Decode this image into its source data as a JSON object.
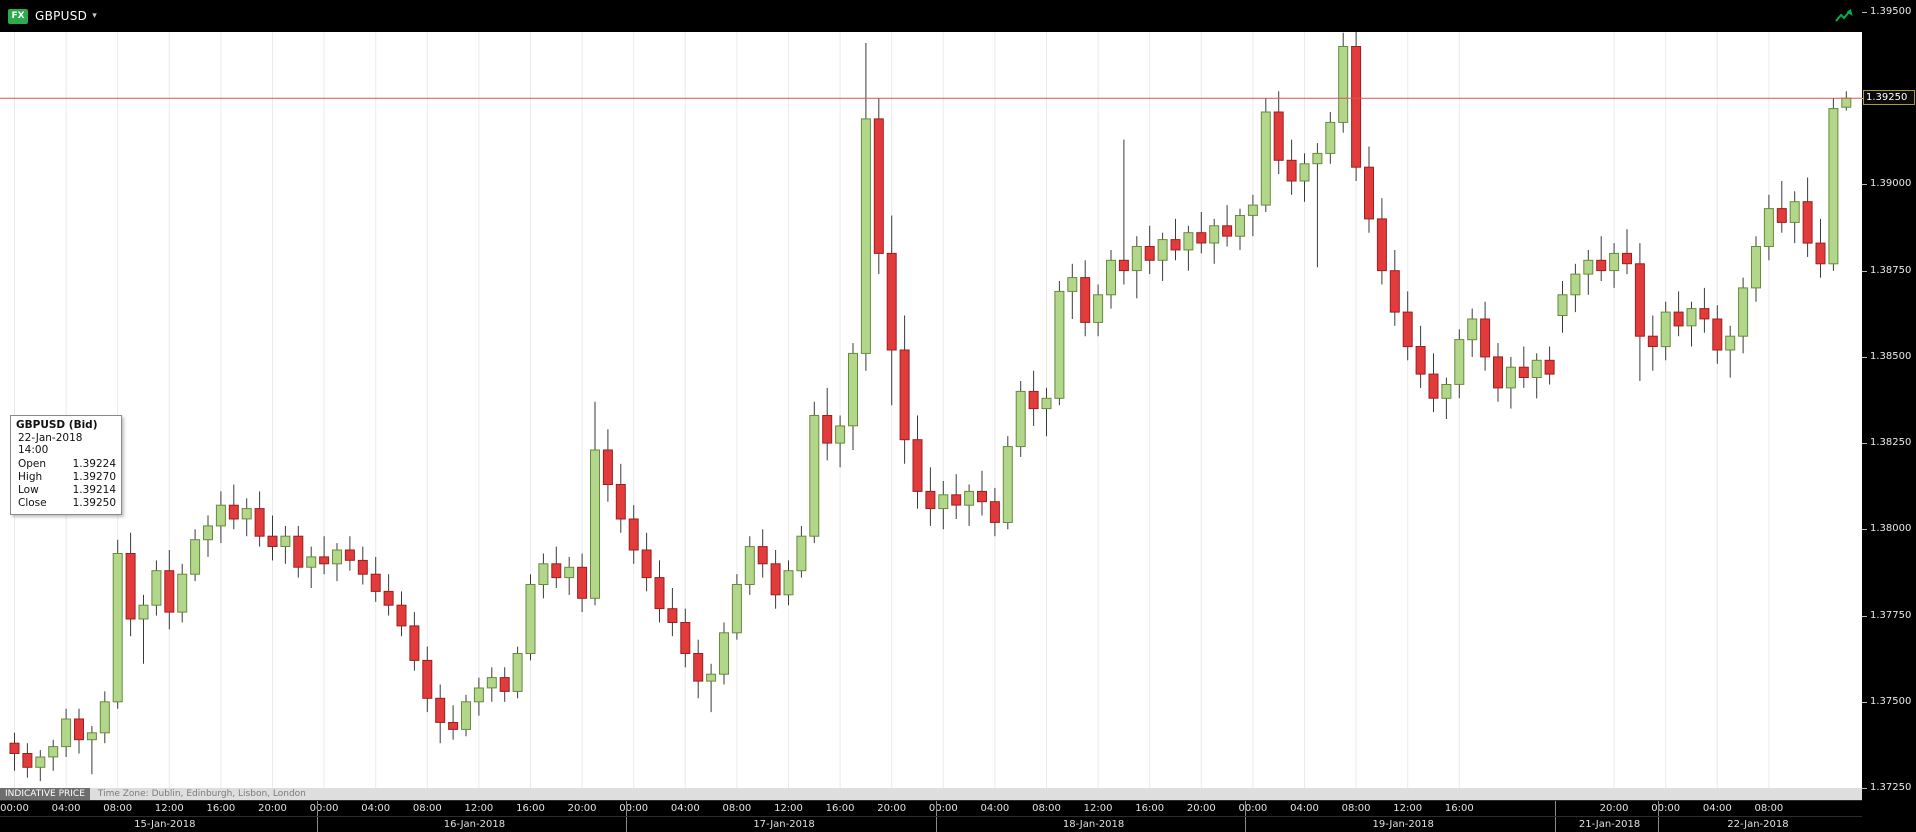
{
  "app": {
    "badge": "FX",
    "symbol": "GBPUSD",
    "icons": {
      "dropdown": "▾",
      "trend": "trend-up-zigzag-arrow"
    },
    "colors": {
      "badge_green": "#2eaa4e",
      "trend_green": "#00b050"
    }
  },
  "tooltip": {
    "title": "GBPUSD (Bid)",
    "datetime": "22-Jan-2018 14:00",
    "rows": [
      {
        "label": "Open",
        "value": "1.39224"
      },
      {
        "label": "High",
        "value": "1.39270"
      },
      {
        "label": "Low",
        "value": "1.39214"
      },
      {
        "label": "Close",
        "value": "1.39250"
      }
    ]
  },
  "footer": {
    "indicative": "INDICATIVE PRICE",
    "timezone": "Time Zone: Dublin, Edinburgh, Lisbon, London"
  },
  "chart_data": {
    "type": "candlestick",
    "series_name": "GBPUSD (Bid)",
    "interval": "1 hour",
    "price_axis": {
      "min": 1.3725,
      "max": 1.395,
      "step": 0.0025,
      "labels": [
        "1.39500",
        "1.39250",
        "1.39000",
        "1.38750",
        "1.38500",
        "1.38250",
        "1.38000",
        "1.37750",
        "1.37500",
        "1.37250"
      ]
    },
    "current_price": {
      "label": "1.39250",
      "value": 1.3925
    },
    "colors": {
      "up_fill": "#b2d78a",
      "up_stroke": "#678a3c",
      "down_fill": "#e13b3b",
      "down_stroke": "#9e1f1f",
      "wick": "#3a3a3a",
      "grid": "#ebebeb",
      "price_line": "#d95555"
    },
    "time_ticks": [
      [
        0,
        "00:00"
      ],
      [
        4,
        "04:00"
      ],
      [
        8,
        "08:00"
      ],
      [
        12,
        "12:00"
      ],
      [
        16,
        "16:00"
      ],
      [
        20,
        "20:00"
      ],
      [
        24,
        "00:00"
      ],
      [
        28,
        "04:00"
      ],
      [
        32,
        "08:00"
      ],
      [
        36,
        "12:00"
      ],
      [
        40,
        "16:00"
      ],
      [
        44,
        "20:00"
      ],
      [
        48,
        "00:00"
      ],
      [
        52,
        "04:00"
      ],
      [
        56,
        "08:00"
      ],
      [
        60,
        "12:00"
      ],
      [
        64,
        "16:00"
      ],
      [
        68,
        "20:00"
      ],
      [
        72,
        "00:00"
      ],
      [
        76,
        "04:00"
      ],
      [
        80,
        "08:00"
      ],
      [
        84,
        "12:00"
      ],
      [
        88,
        "16:00"
      ],
      [
        92,
        "20:00"
      ],
      [
        96,
        "00:00"
      ],
      [
        100,
        "04:00"
      ],
      [
        104,
        "08:00"
      ],
      [
        108,
        "12:00"
      ],
      [
        112,
        "16:00"
      ],
      [
        124,
        "20:00"
      ],
      [
        128,
        "00:00"
      ],
      [
        132,
        "04:00"
      ],
      [
        136,
        "08:00"
      ]
    ],
    "dates": [
      {
        "label": "15-Jan-2018",
        "start": 0,
        "end": 24
      },
      {
        "label": "16-Jan-2018",
        "start": 24,
        "end": 48
      },
      {
        "label": "17-Jan-2018",
        "start": 48,
        "end": 72
      },
      {
        "label": "18-Jan-2018",
        "start": 72,
        "end": 96
      },
      {
        "label": "19-Jan-2018",
        "start": 96,
        "end": 120
      },
      {
        "label": "21-Jan-2018",
        "start": 120,
        "end": 128
      },
      {
        "label": "22-Jan-2018",
        "start": 128,
        "end": 143
      }
    ],
    "day_boundaries": [
      24,
      48,
      72,
      96,
      120,
      128
    ],
    "candles": [
      [
        1.3738,
        1.3741,
        1.373,
        1.3735
      ],
      [
        1.3735,
        1.3738,
        1.3728,
        1.3731
      ],
      [
        1.3731,
        1.3736,
        1.3727,
        1.3734
      ],
      [
        1.3734,
        1.3739,
        1.373,
        1.3737
      ],
      [
        1.3737,
        1.3748,
        1.3734,
        1.3745
      ],
      [
        1.3745,
        1.3748,
        1.3735,
        1.3739
      ],
      [
        1.3739,
        1.3743,
        1.3729,
        1.3741
      ],
      [
        1.3741,
        1.3753,
        1.3738,
        1.375
      ],
      [
        1.375,
        1.3797,
        1.3748,
        1.3793
      ],
      [
        1.3793,
        1.3799,
        1.3769,
        1.3774
      ],
      [
        1.3774,
        1.3781,
        1.3761,
        1.3778
      ],
      [
        1.3778,
        1.3791,
        1.3775,
        1.3788
      ],
      [
        1.3788,
        1.3794,
        1.3771,
        1.3776
      ],
      [
        1.3776,
        1.379,
        1.3773,
        1.3787
      ],
      [
        1.3787,
        1.38,
        1.3785,
        1.3797
      ],
      [
        1.3797,
        1.3804,
        1.3792,
        1.3801
      ],
      [
        1.3801,
        1.3811,
        1.3796,
        1.3807
      ],
      [
        1.3807,
        1.3813,
        1.38,
        1.3803
      ],
      [
        1.3803,
        1.3809,
        1.3798,
        1.3806
      ],
      [
        1.3806,
        1.3811,
        1.3795,
        1.3798
      ],
      [
        1.3798,
        1.3804,
        1.3791,
        1.3795
      ],
      [
        1.3795,
        1.3801,
        1.379,
        1.3798
      ],
      [
        1.3798,
        1.3801,
        1.3786,
        1.3789
      ],
      [
        1.3789,
        1.3795,
        1.3783,
        1.3792
      ],
      [
        1.3792,
        1.3798,
        1.3787,
        1.379
      ],
      [
        1.379,
        1.3796,
        1.3785,
        1.3794
      ],
      [
        1.3794,
        1.3798,
        1.3788,
        1.3791
      ],
      [
        1.3791,
        1.3795,
        1.3784,
        1.3787
      ],
      [
        1.3787,
        1.3792,
        1.3779,
        1.3782
      ],
      [
        1.3782,
        1.3787,
        1.3775,
        1.3778
      ],
      [
        1.3778,
        1.3782,
        1.3769,
        1.3772
      ],
      [
        1.3772,
        1.3776,
        1.3759,
        1.3762
      ],
      [
        1.3762,
        1.3766,
        1.3747,
        1.3751
      ],
      [
        1.3751,
        1.3755,
        1.3738,
        1.3744
      ],
      [
        1.3744,
        1.3749,
        1.3739,
        1.3742
      ],
      [
        1.3742,
        1.3752,
        1.374,
        1.375
      ],
      [
        1.375,
        1.3757,
        1.3746,
        1.3754
      ],
      [
        1.3754,
        1.376,
        1.375,
        1.3757
      ],
      [
        1.3757,
        1.376,
        1.375,
        1.3753
      ],
      [
        1.3753,
        1.3766,
        1.3751,
        1.3764
      ],
      [
        1.3764,
        1.3787,
        1.3762,
        1.3784
      ],
      [
        1.3784,
        1.3793,
        1.378,
        1.379
      ],
      [
        1.379,
        1.3795,
        1.3783,
        1.3786
      ],
      [
        1.3786,
        1.3792,
        1.3781,
        1.3789
      ],
      [
        1.3789,
        1.3793,
        1.3776,
        1.378
      ],
      [
        1.378,
        1.3837,
        1.3778,
        1.3823
      ],
      [
        1.3823,
        1.3829,
        1.3808,
        1.3813
      ],
      [
        1.3813,
        1.3819,
        1.3799,
        1.3803
      ],
      [
        1.3803,
        1.3807,
        1.379,
        1.3794
      ],
      [
        1.3794,
        1.3799,
        1.3782,
        1.3786
      ],
      [
        1.3786,
        1.3791,
        1.3773,
        1.3777
      ],
      [
        1.3777,
        1.3783,
        1.3769,
        1.3773
      ],
      [
        1.3773,
        1.3777,
        1.376,
        1.3764
      ],
      [
        1.3764,
        1.3768,
        1.3751,
        1.3756
      ],
      [
        1.3756,
        1.3761,
        1.3747,
        1.3758
      ],
      [
        1.3758,
        1.3773,
        1.3755,
        1.377
      ],
      [
        1.377,
        1.3787,
        1.3768,
        1.3784
      ],
      [
        1.3784,
        1.3798,
        1.3781,
        1.3795
      ],
      [
        1.3795,
        1.38,
        1.3786,
        1.379
      ],
      [
        1.379,
        1.3794,
        1.3777,
        1.3781
      ],
      [
        1.3781,
        1.3791,
        1.3778,
        1.3788
      ],
      [
        1.3788,
        1.3801,
        1.3786,
        1.3798
      ],
      [
        1.3798,
        1.3837,
        1.3796,
        1.3833
      ],
      [
        1.3833,
        1.3841,
        1.382,
        1.3825
      ],
      [
        1.3825,
        1.3833,
        1.3818,
        1.383
      ],
      [
        1.383,
        1.3854,
        1.3823,
        1.3851
      ],
      [
        1.3851,
        1.3941,
        1.3846,
        1.3919
      ],
      [
        1.3919,
        1.3925,
        1.3874,
        1.388
      ],
      [
        1.388,
        1.3891,
        1.3836,
        1.3852
      ],
      [
        1.3852,
        1.3862,
        1.3819,
        1.3826
      ],
      [
        1.3826,
        1.3833,
        1.3806,
        1.3811
      ],
      [
        1.3811,
        1.3818,
        1.3801,
        1.3806
      ],
      [
        1.3806,
        1.3814,
        1.38,
        1.381
      ],
      [
        1.381,
        1.3816,
        1.3803,
        1.3807
      ],
      [
        1.3807,
        1.3813,
        1.3801,
        1.3811
      ],
      [
        1.3811,
        1.3817,
        1.3804,
        1.3808
      ],
      [
        1.3808,
        1.3812,
        1.3798,
        1.3802
      ],
      [
        1.3802,
        1.3827,
        1.38,
        1.3824
      ],
      [
        1.3824,
        1.3843,
        1.3821,
        1.384
      ],
      [
        1.384,
        1.3846,
        1.383,
        1.3835
      ],
      [
        1.3835,
        1.3841,
        1.3827,
        1.3838
      ],
      [
        1.3838,
        1.3872,
        1.3836,
        1.3869
      ],
      [
        1.3869,
        1.3877,
        1.3861,
        1.3873
      ],
      [
        1.3873,
        1.3878,
        1.3856,
        1.386
      ],
      [
        1.386,
        1.3871,
        1.3856,
        1.3868
      ],
      [
        1.3868,
        1.3881,
        1.3864,
        1.3878
      ],
      [
        1.3878,
        1.3913,
        1.3871,
        1.3875
      ],
      [
        1.3875,
        1.3885,
        1.3867,
        1.3882
      ],
      [
        1.3882,
        1.3888,
        1.3874,
        1.3878
      ],
      [
        1.3878,
        1.3886,
        1.3872,
        1.3884
      ],
      [
        1.3884,
        1.389,
        1.3878,
        1.3881
      ],
      [
        1.3881,
        1.3888,
        1.3875,
        1.3886
      ],
      [
        1.3886,
        1.3892,
        1.388,
        1.3883
      ],
      [
        1.3883,
        1.389,
        1.3877,
        1.3888
      ],
      [
        1.3888,
        1.3894,
        1.3882,
        1.3885
      ],
      [
        1.3885,
        1.3893,
        1.3881,
        1.3891
      ],
      [
        1.3891,
        1.3897,
        1.3885,
        1.3894
      ],
      [
        1.3894,
        1.3925,
        1.3892,
        1.3921
      ],
      [
        1.3921,
        1.3927,
        1.3903,
        1.3907
      ],
      [
        1.3907,
        1.3913,
        1.3897,
        1.3901
      ],
      [
        1.3901,
        1.3909,
        1.3895,
        1.3906
      ],
      [
        1.3906,
        1.3912,
        1.3876,
        1.3909
      ],
      [
        1.3909,
        1.3921,
        1.3906,
        1.3918
      ],
      [
        1.3918,
        1.3944,
        1.3915,
        1.394
      ],
      [
        1.394,
        1.3946,
        1.3901,
        1.3905
      ],
      [
        1.3905,
        1.3911,
        1.3886,
        1.389
      ],
      [
        1.389,
        1.3896,
        1.3871,
        1.3875
      ],
      [
        1.3875,
        1.3881,
        1.3859,
        1.3863
      ],
      [
        1.3863,
        1.3869,
        1.3849,
        1.3853
      ],
      [
        1.3853,
        1.3859,
        1.3841,
        1.3845
      ],
      [
        1.3845,
        1.3851,
        1.3834,
        1.3838
      ],
      [
        1.3838,
        1.3844,
        1.3832,
        1.3842
      ],
      [
        1.3842,
        1.3858,
        1.3838,
        1.3855
      ],
      [
        1.3855,
        1.3864,
        1.385,
        1.3861
      ],
      [
        1.3861,
        1.3866,
        1.3846,
        1.385
      ],
      [
        1.385,
        1.3854,
        1.3837,
        1.3841
      ],
      [
        1.3841,
        1.385,
        1.3835,
        1.3847
      ],
      [
        1.3847,
        1.3853,
        1.3841,
        1.3844
      ],
      [
        1.3844,
        1.3851,
        1.3838,
        1.3849
      ],
      [
        1.3849,
        1.3853,
        1.3842,
        1.3845
      ],
      [
        1.3862,
        1.3872,
        1.3857,
        1.3868
      ],
      [
        1.3868,
        1.3877,
        1.3863,
        1.3874
      ],
      [
        1.3874,
        1.3881,
        1.3868,
        1.3878
      ],
      [
        1.3878,
        1.3885,
        1.3872,
        1.3875
      ],
      [
        1.3875,
        1.3883,
        1.387,
        1.388
      ],
      [
        1.388,
        1.3887,
        1.3874,
        1.3877
      ],
      [
        1.3877,
        1.3883,
        1.3843,
        1.3856
      ],
      [
        1.3856,
        1.3862,
        1.3846,
        1.3853
      ],
      [
        1.3853,
        1.3866,
        1.3849,
        1.3863
      ],
      [
        1.3863,
        1.3869,
        1.3856,
        1.3859
      ],
      [
        1.3859,
        1.3866,
        1.3853,
        1.3864
      ],
      [
        1.3864,
        1.387,
        1.3857,
        1.3861
      ],
      [
        1.3861,
        1.3865,
        1.3848,
        1.3852
      ],
      [
        1.3852,
        1.3859,
        1.3844,
        1.3856
      ],
      [
        1.3856,
        1.3873,
        1.3851,
        1.387
      ],
      [
        1.387,
        1.3885,
        1.3866,
        1.3882
      ],
      [
        1.3882,
        1.3897,
        1.3878,
        1.3893
      ],
      [
        1.3893,
        1.3901,
        1.3886,
        1.3889
      ],
      [
        1.3889,
        1.3898,
        1.3883,
        1.3895
      ],
      [
        1.3895,
        1.3902,
        1.3879,
        1.3883
      ],
      [
        1.3883,
        1.389,
        1.3873,
        1.3877
      ],
      [
        1.3877,
        1.3925,
        1.3875,
        1.3922
      ],
      [
        1.39224,
        1.3927,
        1.39214,
        1.3925
      ]
    ]
  }
}
